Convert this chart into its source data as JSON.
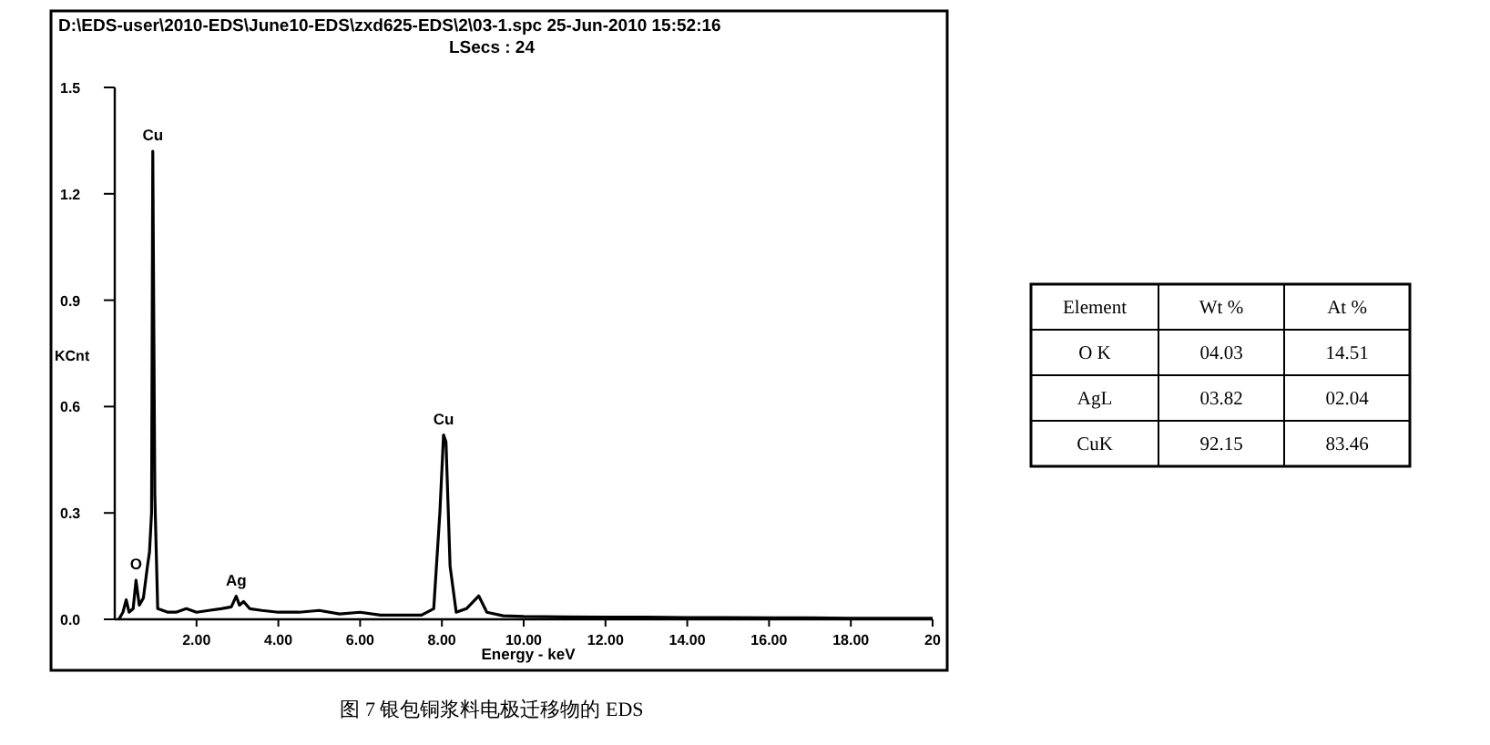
{
  "chart_data": [
    {
      "type": "line",
      "title": "D:\\EDS-user\\2010-EDS\\June10-EDS\\zxd625-EDS\\2\\03-1.spc  25-Jun-2010 15:52:16",
      "subtitle": "LSecs : 24",
      "xlabel": "Energy - keV",
      "ylabel": "KCnt",
      "color": "#000000",
      "x": [
        0.1,
        0.2,
        0.28,
        0.35,
        0.45,
        0.52,
        0.6,
        0.7,
        0.8,
        0.85,
        0.9,
        0.93,
        0.98,
        1.05,
        1.3,
        1.5,
        1.75,
        2.0,
        2.3,
        2.6,
        2.85,
        2.97,
        3.05,
        3.15,
        3.3,
        3.6,
        4.0,
        4.5,
        5.0,
        5.5,
        6.0,
        6.5,
        7.0,
        7.5,
        7.8,
        7.95,
        8.04,
        8.1,
        8.2,
        8.35,
        8.6,
        8.9,
        9.1,
        9.5,
        10,
        11,
        12,
        13,
        14,
        15,
        16,
        17,
        18,
        19,
        20
      ],
      "values": [
        0.0,
        0.02,
        0.055,
        0.02,
        0.03,
        0.11,
        0.04,
        0.06,
        0.15,
        0.19,
        0.3,
        1.32,
        0.35,
        0.03,
        0.02,
        0.02,
        0.03,
        0.02,
        0.025,
        0.03,
        0.035,
        0.065,
        0.04,
        0.05,
        0.03,
        0.025,
        0.02,
        0.02,
        0.025,
        0.015,
        0.02,
        0.012,
        0.012,
        0.012,
        0.03,
        0.3,
        0.52,
        0.5,
        0.15,
        0.02,
        0.03,
        0.066,
        0.02,
        0.01,
        0.008,
        0.007,
        0.006,
        0.006,
        0.005,
        0.005,
        0.004,
        0.004,
        0.003,
        0.003,
        0.003
      ],
      "xlim": [
        0,
        20
      ],
      "ylim": [
        0,
        1.5
      ],
      "xticks": [
        {
          "value": 2,
          "label": "2.00"
        },
        {
          "value": 4,
          "label": "4.00"
        },
        {
          "value": 6,
          "label": "6.00"
        },
        {
          "value": 8,
          "label": "8.00"
        },
        {
          "value": 10,
          "label": "10.00"
        },
        {
          "value": 12,
          "label": "12.00"
        },
        {
          "value": 14,
          "label": "14.00"
        },
        {
          "value": 16,
          "label": "16.00"
        },
        {
          "value": 18,
          "label": "18.00"
        },
        {
          "value": 20,
          "label": "20"
        }
      ],
      "yticks": [
        {
          "value": 0,
          "label": "0.0"
        },
        {
          "value": 0.3,
          "label": "0.3"
        },
        {
          "value": 0.6,
          "label": "0.6"
        },
        {
          "value": 0.9,
          "label": "0.9"
        },
        {
          "value": 1.2,
          "label": "1.2"
        },
        {
          "value": 1.5,
          "label": "1.5"
        }
      ],
      "annotations": [
        {
          "text": "Cu",
          "x": 0.93,
          "y": 1.32
        },
        {
          "text": "O",
          "x": 0.52,
          "y": 0.11
        },
        {
          "text": "Ag",
          "x": 2.97,
          "y": 0.065
        },
        {
          "text": "Cu",
          "x": 8.04,
          "y": 0.52
        },
        "图 7 银包铜浆料电极迁移物的 EDS"
      ]
    },
    {
      "type": "other",
      "annotations": [
        "Element",
        "Wt %",
        "At %",
        "O K",
        "04.03",
        "14.51",
        "AgL",
        "03.82",
        "02.04",
        "CuK",
        "92.15",
        "83.46"
      ]
    }
  ]
}
